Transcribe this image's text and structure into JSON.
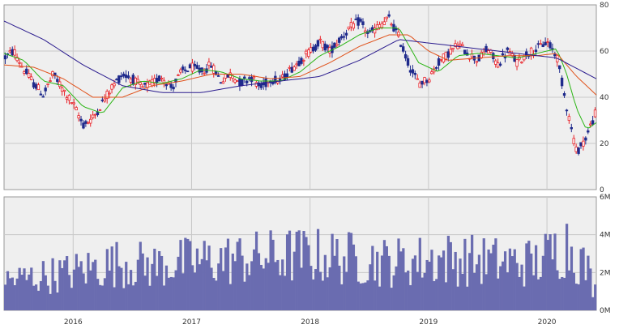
{
  "chart_data": [
    {
      "type": "line",
      "subtype": "candlestick",
      "title": "",
      "xlabel": "",
      "ylabel": "",
      "ylim": [
        0,
        80
      ],
      "y_ticks": [
        "80",
        "60",
        "40",
        "20",
        "0"
      ],
      "y_tick_values": [
        80,
        60,
        40,
        20,
        0
      ],
      "x_ticks": [
        "2016",
        "2017",
        "2018",
        "2019",
        "2020"
      ],
      "x_range": [
        "2015-06",
        "2020-06"
      ],
      "grid": true,
      "colors": {
        "up": "#e8232a",
        "down": "#1f2a8c",
        "ma_short": "#2ab514",
        "ma_mid": "#e0511a",
        "ma_long": "#2a1b8e",
        "background": "#efefef",
        "grid": "#c8c8c8"
      },
      "price_path": [
        [
          "2015-06",
          57
        ],
        [
          "2015-07",
          60
        ],
        [
          "2015-08",
          52
        ],
        [
          "2015-09",
          46
        ],
        [
          "2015-10",
          41
        ],
        [
          "2015-11",
          50
        ],
        [
          "2015-12",
          43
        ],
        [
          "2016-01",
          37
        ],
        [
          "2016-02",
          28
        ],
        [
          "2016-03",
          31
        ],
        [
          "2016-04",
          38
        ],
        [
          "2016-05",
          45
        ],
        [
          "2016-06",
          50
        ],
        [
          "2016-07",
          48
        ],
        [
          "2016-08",
          44
        ],
        [
          "2016-09",
          46
        ],
        [
          "2016-10",
          49
        ],
        [
          "2016-11",
          44
        ],
        [
          "2016-12",
          51
        ],
        [
          "2017-01",
          53
        ],
        [
          "2017-02",
          51
        ],
        [
          "2017-03",
          54
        ],
        [
          "2017-04",
          47
        ],
        [
          "2017-05",
          50
        ],
        [
          "2017-06",
          46
        ],
        [
          "2017-07",
          49
        ],
        [
          "2017-08",
          44
        ],
        [
          "2017-09",
          48
        ],
        [
          "2017-10",
          47
        ],
        [
          "2017-11",
          52
        ],
        [
          "2017-12",
          56
        ],
        [
          "2018-01",
          60
        ],
        [
          "2018-02",
          64
        ],
        [
          "2018-03",
          60
        ],
        [
          "2018-04",
          65
        ],
        [
          "2018-05",
          70
        ],
        [
          "2018-06",
          73
        ],
        [
          "2018-07",
          67
        ],
        [
          "2018-08",
          71
        ],
        [
          "2018-09",
          74
        ],
        [
          "2018-10",
          66
        ],
        [
          "2018-11",
          54
        ],
        [
          "2018-12",
          46
        ],
        [
          "2019-01",
          48
        ],
        [
          "2019-02",
          55
        ],
        [
          "2019-03",
          59
        ],
        [
          "2019-04",
          63
        ],
        [
          "2019-05",
          59
        ],
        [
          "2019-06",
          56
        ],
        [
          "2019-07",
          61
        ],
        [
          "2019-08",
          54
        ],
        [
          "2019-09",
          60
        ],
        [
          "2019-10",
          55
        ],
        [
          "2019-11",
          59
        ],
        [
          "2019-12",
          61
        ],
        [
          "2020-01",
          64
        ],
        [
          "2020-02",
          58
        ],
        [
          "2020-03",
          36
        ],
        [
          "2020-04",
          16
        ],
        [
          "2020-05",
          23
        ],
        [
          "2020-06",
          34
        ]
      ],
      "moving_averages": [
        {
          "key": "ma_short",
          "values": [
            [
              "2015-06",
              59
            ],
            [
              "2015-08",
              56
            ],
            [
              "2015-10",
              47
            ],
            [
              "2015-12",
              45
            ],
            [
              "2016-02",
              36
            ],
            [
              "2016-04",
              33
            ],
            [
              "2016-06",
              44
            ],
            [
              "2016-08",
              47
            ],
            [
              "2016-10",
              46
            ],
            [
              "2016-12",
              48
            ],
            [
              "2017-02",
              52
            ],
            [
              "2017-04",
              51
            ],
            [
              "2017-06",
              48
            ],
            [
              "2017-08",
              47
            ],
            [
              "2017-10",
              47
            ],
            [
              "2017-12",
              51
            ],
            [
              "2018-02",
              58
            ],
            [
              "2018-04",
              62
            ],
            [
              "2018-06",
              67
            ],
            [
              "2018-08",
              70
            ],
            [
              "2018-10",
              70
            ],
            [
              "2018-12",
              55
            ],
            [
              "2019-02",
              51
            ],
            [
              "2019-04",
              58
            ],
            [
              "2019-06",
              59
            ],
            [
              "2019-08",
              58
            ],
            [
              "2019-10",
              57
            ],
            [
              "2019-12",
              59
            ],
            [
              "2020-02",
              61
            ],
            [
              "2020-03",
              50
            ],
            [
              "2020-04",
              35
            ],
            [
              "2020-05",
              26
            ],
            [
              "2020-06",
              29
            ]
          ]
        },
        {
          "key": "ma_mid",
          "values": [
            [
              "2015-06",
              54
            ],
            [
              "2015-09",
              53
            ],
            [
              "2015-12",
              48
            ],
            [
              "2016-03",
              40
            ],
            [
              "2016-06",
              40
            ],
            [
              "2016-09",
              45
            ],
            [
              "2016-12",
              47
            ],
            [
              "2017-03",
              50
            ],
            [
              "2017-06",
              50
            ],
            [
              "2017-09",
              48
            ],
            [
              "2017-12",
              49
            ],
            [
              "2018-03",
              55
            ],
            [
              "2018-06",
              62
            ],
            [
              "2018-09",
              67
            ],
            [
              "2018-11",
              67
            ],
            [
              "2019-01",
              60
            ],
            [
              "2019-03",
              56
            ],
            [
              "2019-06",
              57
            ],
            [
              "2019-09",
              58
            ],
            [
              "2019-12",
              58
            ],
            [
              "2020-02",
              59
            ],
            [
              "2020-04",
              49
            ],
            [
              "2020-06",
              41
            ]
          ]
        },
        {
          "key": "ma_long",
          "values": [
            [
              "2015-06",
              73
            ],
            [
              "2015-10",
              65
            ],
            [
              "2016-02",
              54
            ],
            [
              "2016-06",
              45
            ],
            [
              "2016-10",
              42
            ],
            [
              "2017-02",
              42
            ],
            [
              "2017-06",
              45
            ],
            [
              "2017-10",
              47
            ],
            [
              "2018-02",
              49
            ],
            [
              "2018-06",
              56
            ],
            [
              "2018-10",
              65
            ],
            [
              "2019-02",
              63
            ],
            [
              "2019-06",
              61
            ],
            [
              "2019-10",
              59
            ],
            [
              "2020-02",
              57
            ],
            [
              "2020-06",
              48
            ]
          ]
        }
      ]
    },
    {
      "type": "bar",
      "title": "",
      "xlabel": "",
      "ylabel": "",
      "ylim": [
        0,
        6
      ],
      "y_unit": "M",
      "y_ticks": [
        "6M",
        "4M",
        "2M",
        "0M"
      ],
      "y_tick_values": [
        6,
        4,
        2,
        0
      ],
      "x_ticks": [
        "2016",
        "2017",
        "2018",
        "2019",
        "2020"
      ],
      "x_range": [
        "2015-06",
        "2020-06"
      ],
      "grid": true,
      "colors": {
        "bar": "#6a6cb0",
        "background": "#efefef",
        "grid": "#c8c8c8"
      },
      "volume_path": [
        [
          "2015-06",
          1.6
        ],
        [
          "2015-09",
          1.8
        ],
        [
          "2015-12",
          2.0
        ],
        [
          "2016-03",
          2.3
        ],
        [
          "2016-06",
          2.6
        ],
        [
          "2016-09",
          2.4
        ],
        [
          "2016-12",
          2.6
        ],
        [
          "2017-03",
          2.7
        ],
        [
          "2017-06",
          2.8
        ],
        [
          "2017-09",
          2.9
        ],
        [
          "2017-12",
          3.0
        ],
        [
          "2018-03",
          2.9
        ],
        [
          "2018-06",
          2.8
        ],
        [
          "2018-09",
          2.6
        ],
        [
          "2018-12",
          2.7
        ],
        [
          "2019-03",
          2.8
        ],
        [
          "2019-06",
          2.7
        ],
        [
          "2019-09",
          2.6
        ],
        [
          "2019-12",
          2.6
        ],
        [
          "2020-03",
          3.6
        ],
        [
          "2020-05",
          2.3
        ],
        [
          "2020-06",
          0.9
        ]
      ]
    }
  ]
}
